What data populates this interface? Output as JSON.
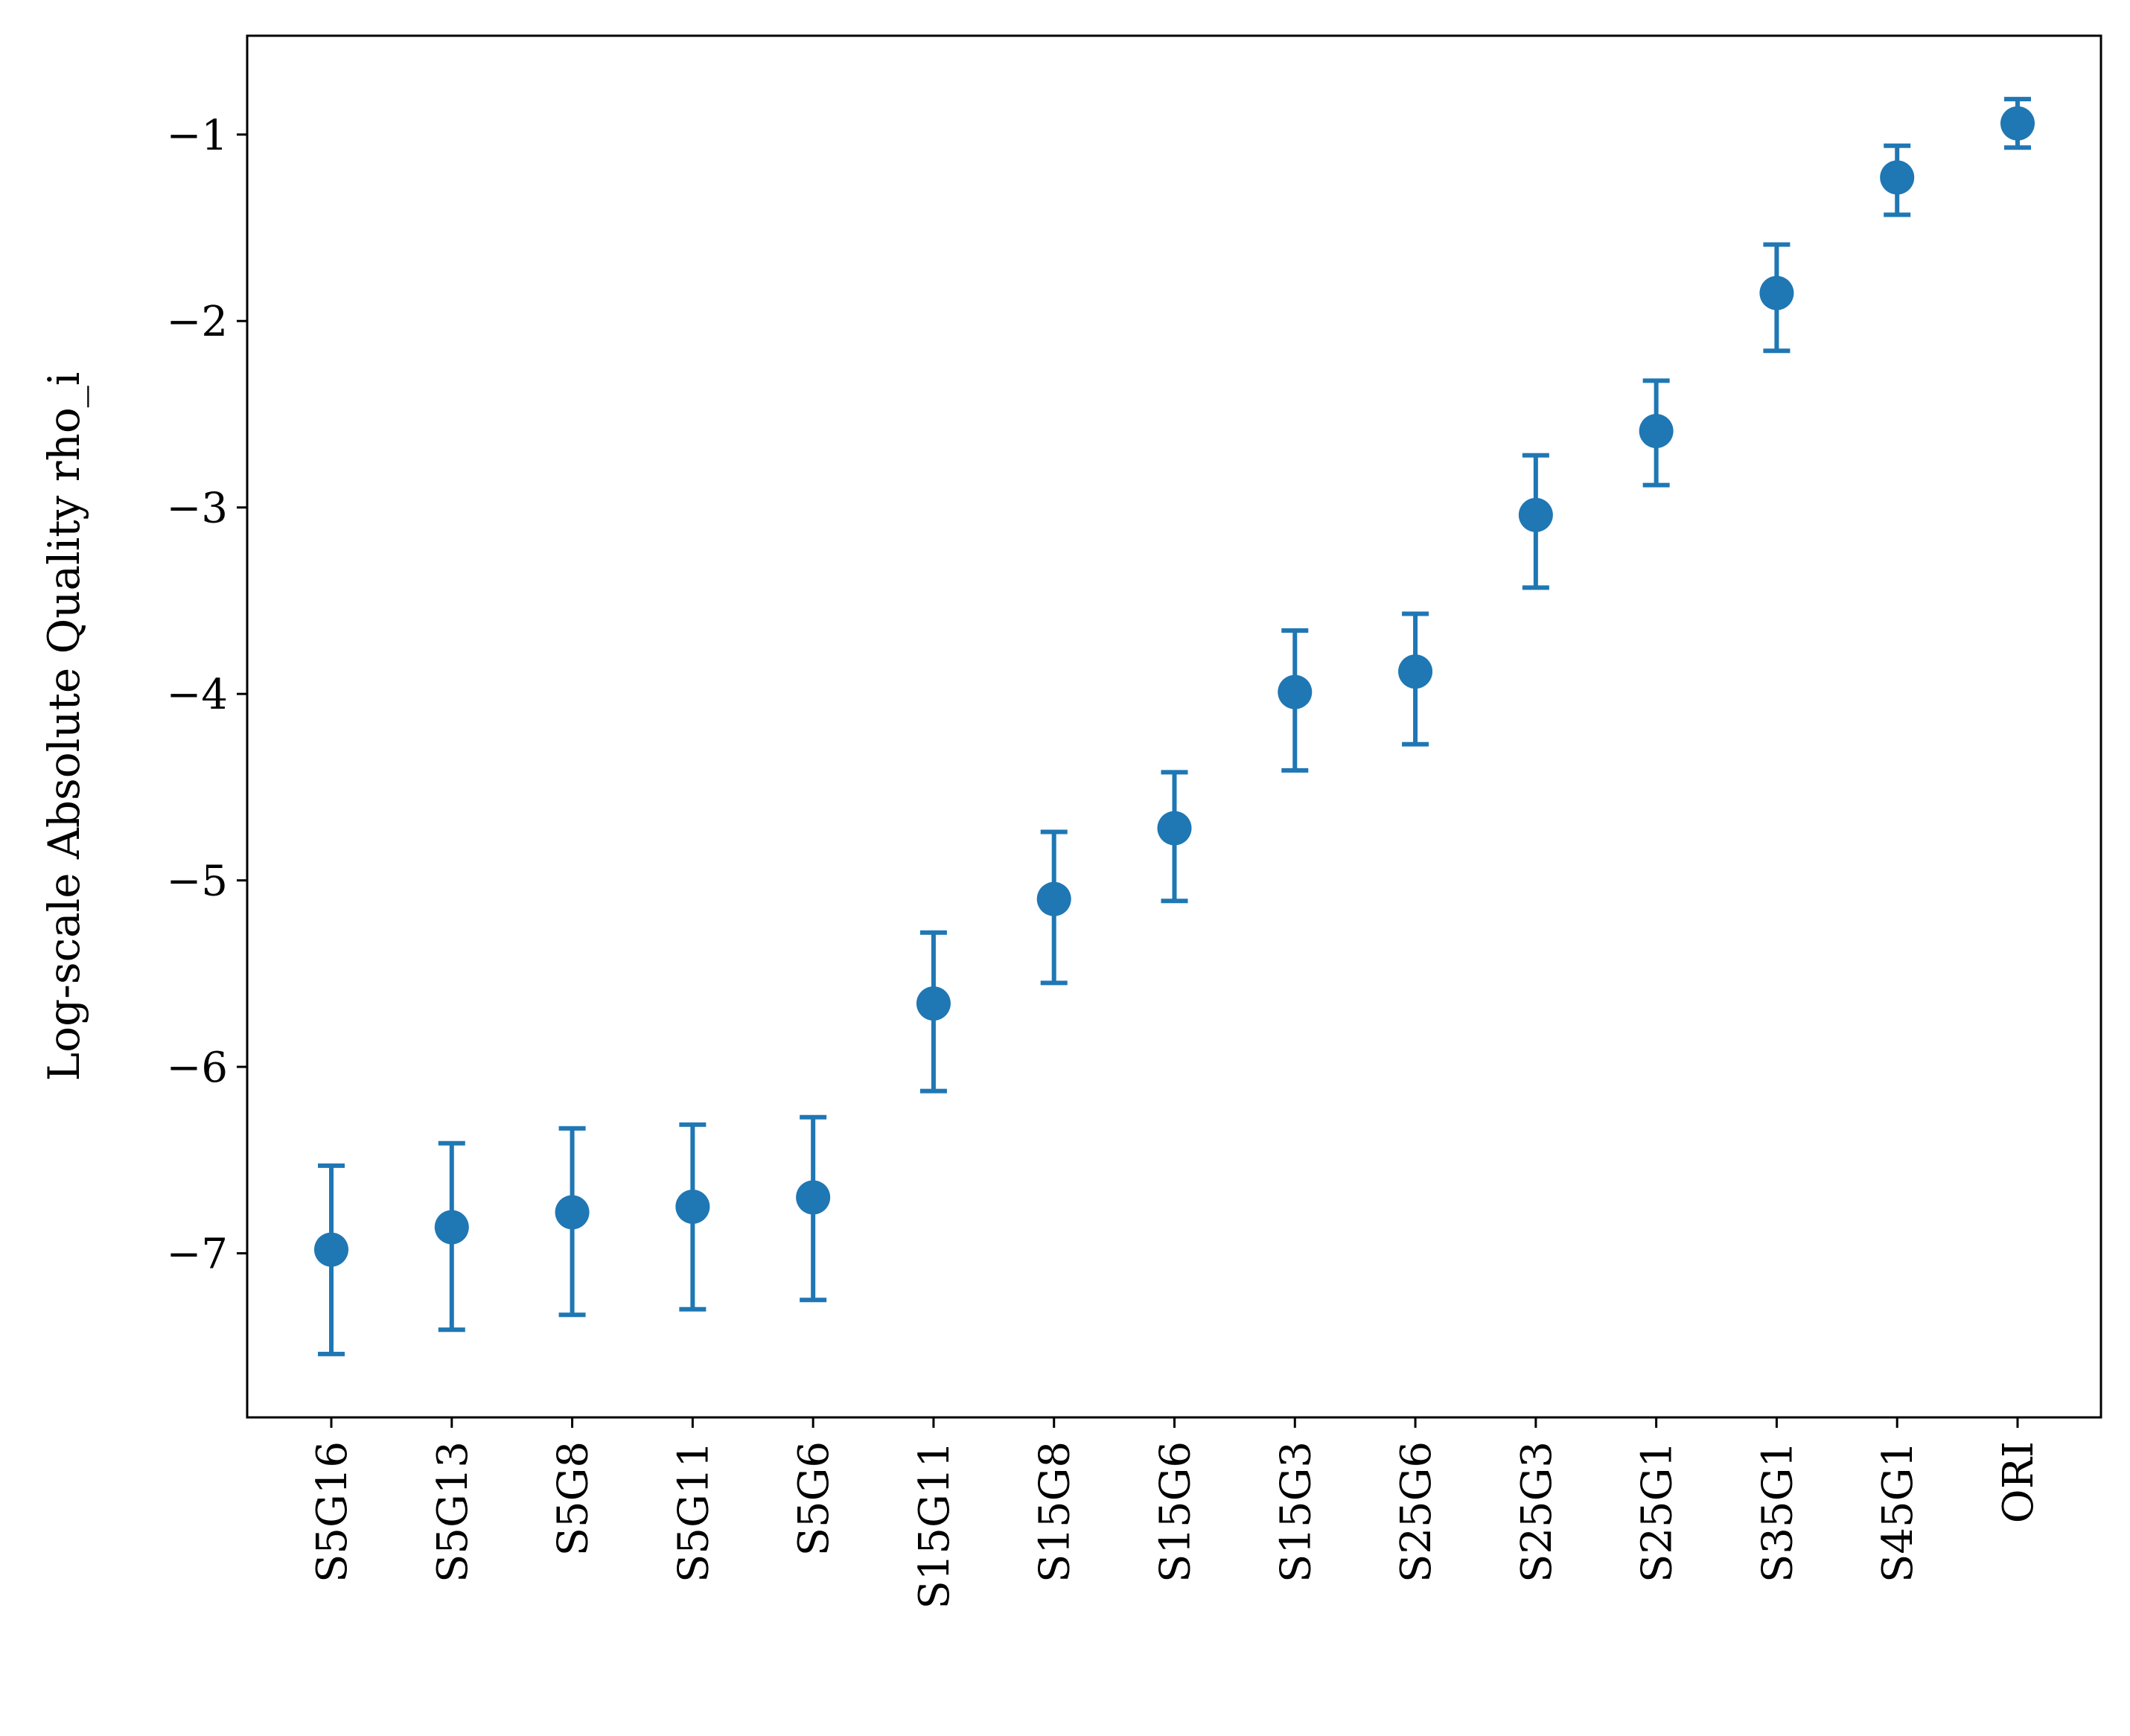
{
  "chart_data": {
    "type": "scatter",
    "title": "",
    "xlabel": "",
    "ylabel": "Log-scale Absolute Quality rho_i",
    "categories": [
      "S5G16",
      "S5G13",
      "S5G8",
      "S5G11",
      "S5G6",
      "S15G11",
      "S15G8",
      "S15G6",
      "S15G3",
      "S25G6",
      "S25G3",
      "S25G1",
      "S35G1",
      "S45G1",
      "ORI"
    ],
    "series": [
      {
        "values": [
          -6.98,
          -6.86,
          -6.78,
          -6.75,
          -6.7,
          -5.66,
          -5.1,
          -4.72,
          -3.99,
          -3.88,
          -3.04,
          -2.59,
          -1.85,
          -1.23,
          -0.94
        ],
        "err_low": [
          -7.54,
          -7.41,
          -7.33,
          -7.3,
          -7.25,
          -6.13,
          -5.55,
          -5.11,
          -4.41,
          -4.27,
          -3.43,
          -2.88,
          -2.16,
          -1.43,
          -1.07
        ],
        "err_high": [
          -6.53,
          -6.41,
          -6.33,
          -6.31,
          -6.27,
          -5.28,
          -4.74,
          -4.42,
          -3.66,
          -3.57,
          -2.72,
          -2.32,
          -1.59,
          -1.06,
          -0.81
        ]
      }
    ],
    "ylim": [
      -7.88,
      -0.47
    ],
    "yticks": [
      -7,
      -6,
      -5,
      -4,
      -3,
      -2,
      -1
    ],
    "ytick_labels": [
      "−7",
      "−6",
      "−5",
      "−4",
      "−3",
      "−2",
      "−1"
    ],
    "grid": false,
    "color": "#1f77b4"
  }
}
